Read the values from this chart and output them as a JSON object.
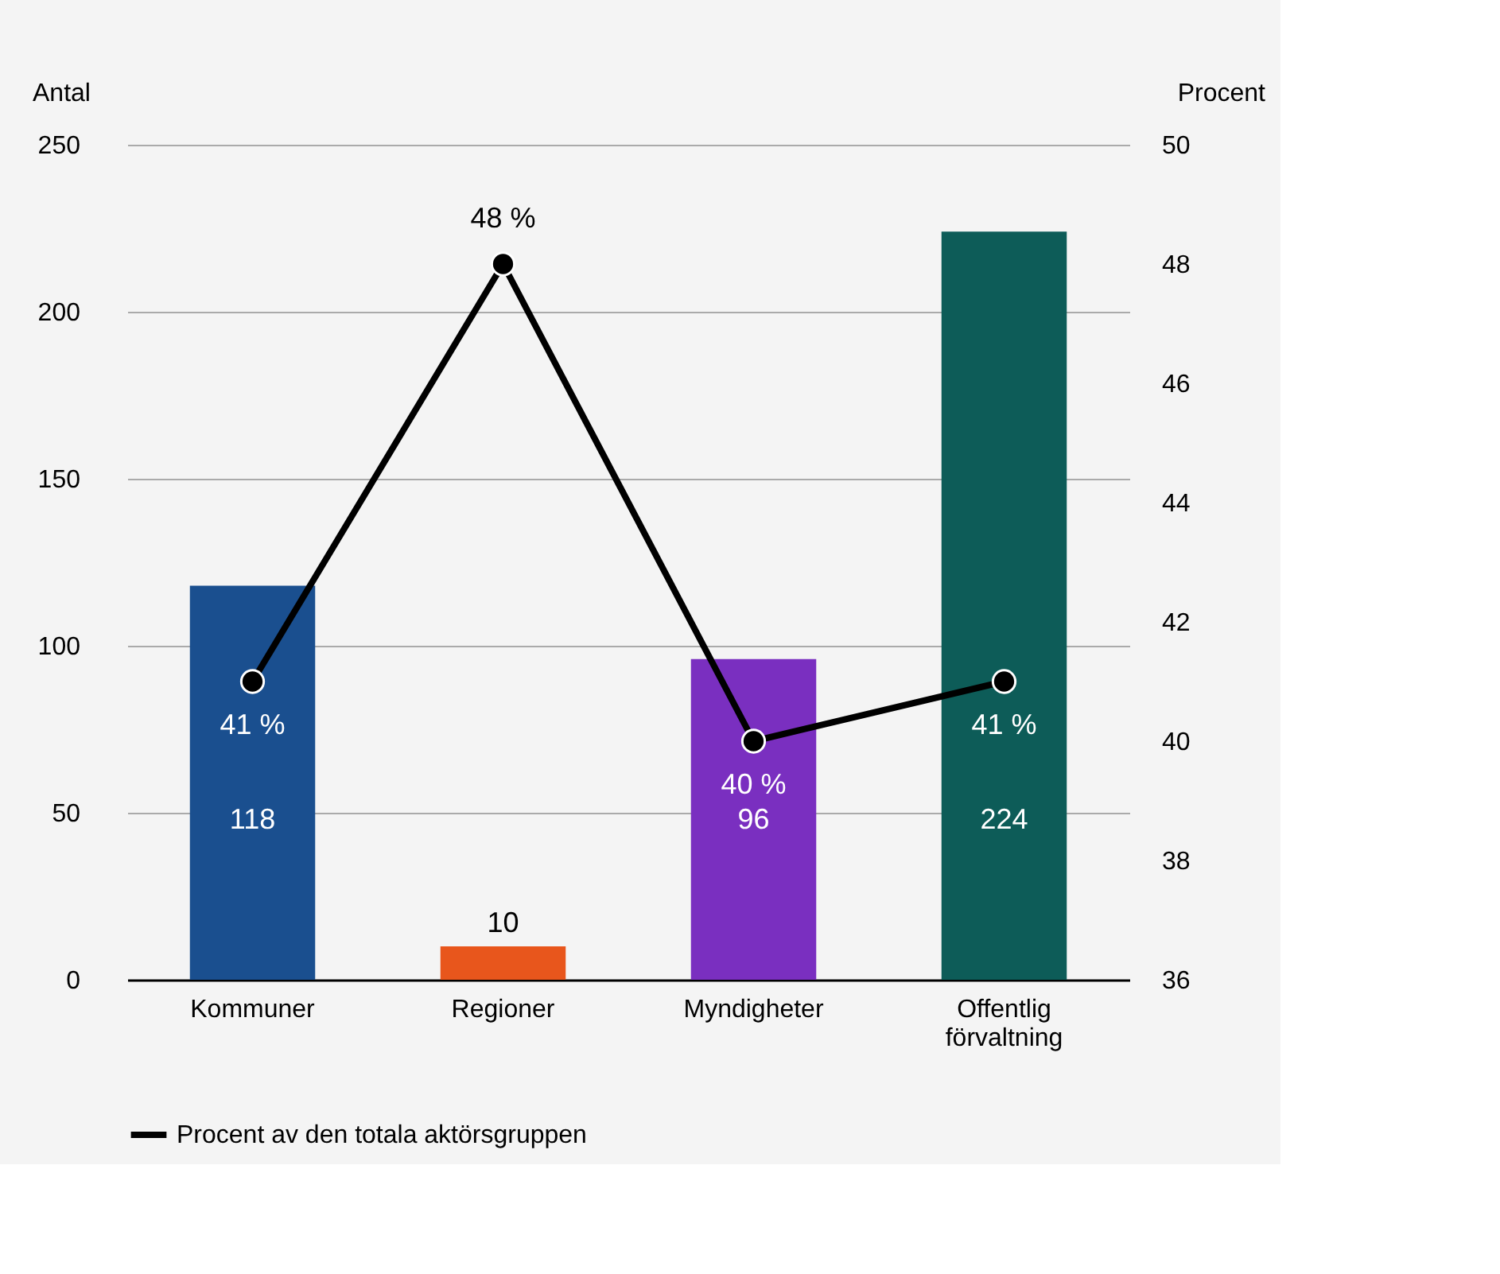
{
  "chart_data": {
    "type": "bar",
    "categories": [
      "Kommuner",
      "Regioner",
      "Myndigheter",
      "Offentlig förvaltning"
    ],
    "values": [
      118,
      10,
      96,
      224
    ],
    "colors": [
      "#1a4f8f",
      "#e8561c",
      "#7a2fc0",
      "#0d5c58"
    ],
    "data_labels": true,
    "ylabel": "Antal",
    "y2label": "Procent",
    "ylim": [
      0,
      250
    ],
    "yticks": [
      0,
      50,
      100,
      150,
      200,
      250
    ],
    "y2lim": [
      36,
      50
    ],
    "y2ticks": [
      36,
      38,
      40,
      42,
      44,
      46,
      48,
      50
    ],
    "series": [
      {
        "name": "Procent av den totala aktörsgruppen",
        "type": "line",
        "axis": "y2",
        "color": "#000000",
        "values": [
          41,
          48,
          40,
          41
        ],
        "value_labels": [
          "41 %",
          "48 %",
          "40 %",
          "41 %"
        ]
      }
    ],
    "marker": "circle",
    "line_style": "solid",
    "grid": "y",
    "legend": "bottom"
  }
}
